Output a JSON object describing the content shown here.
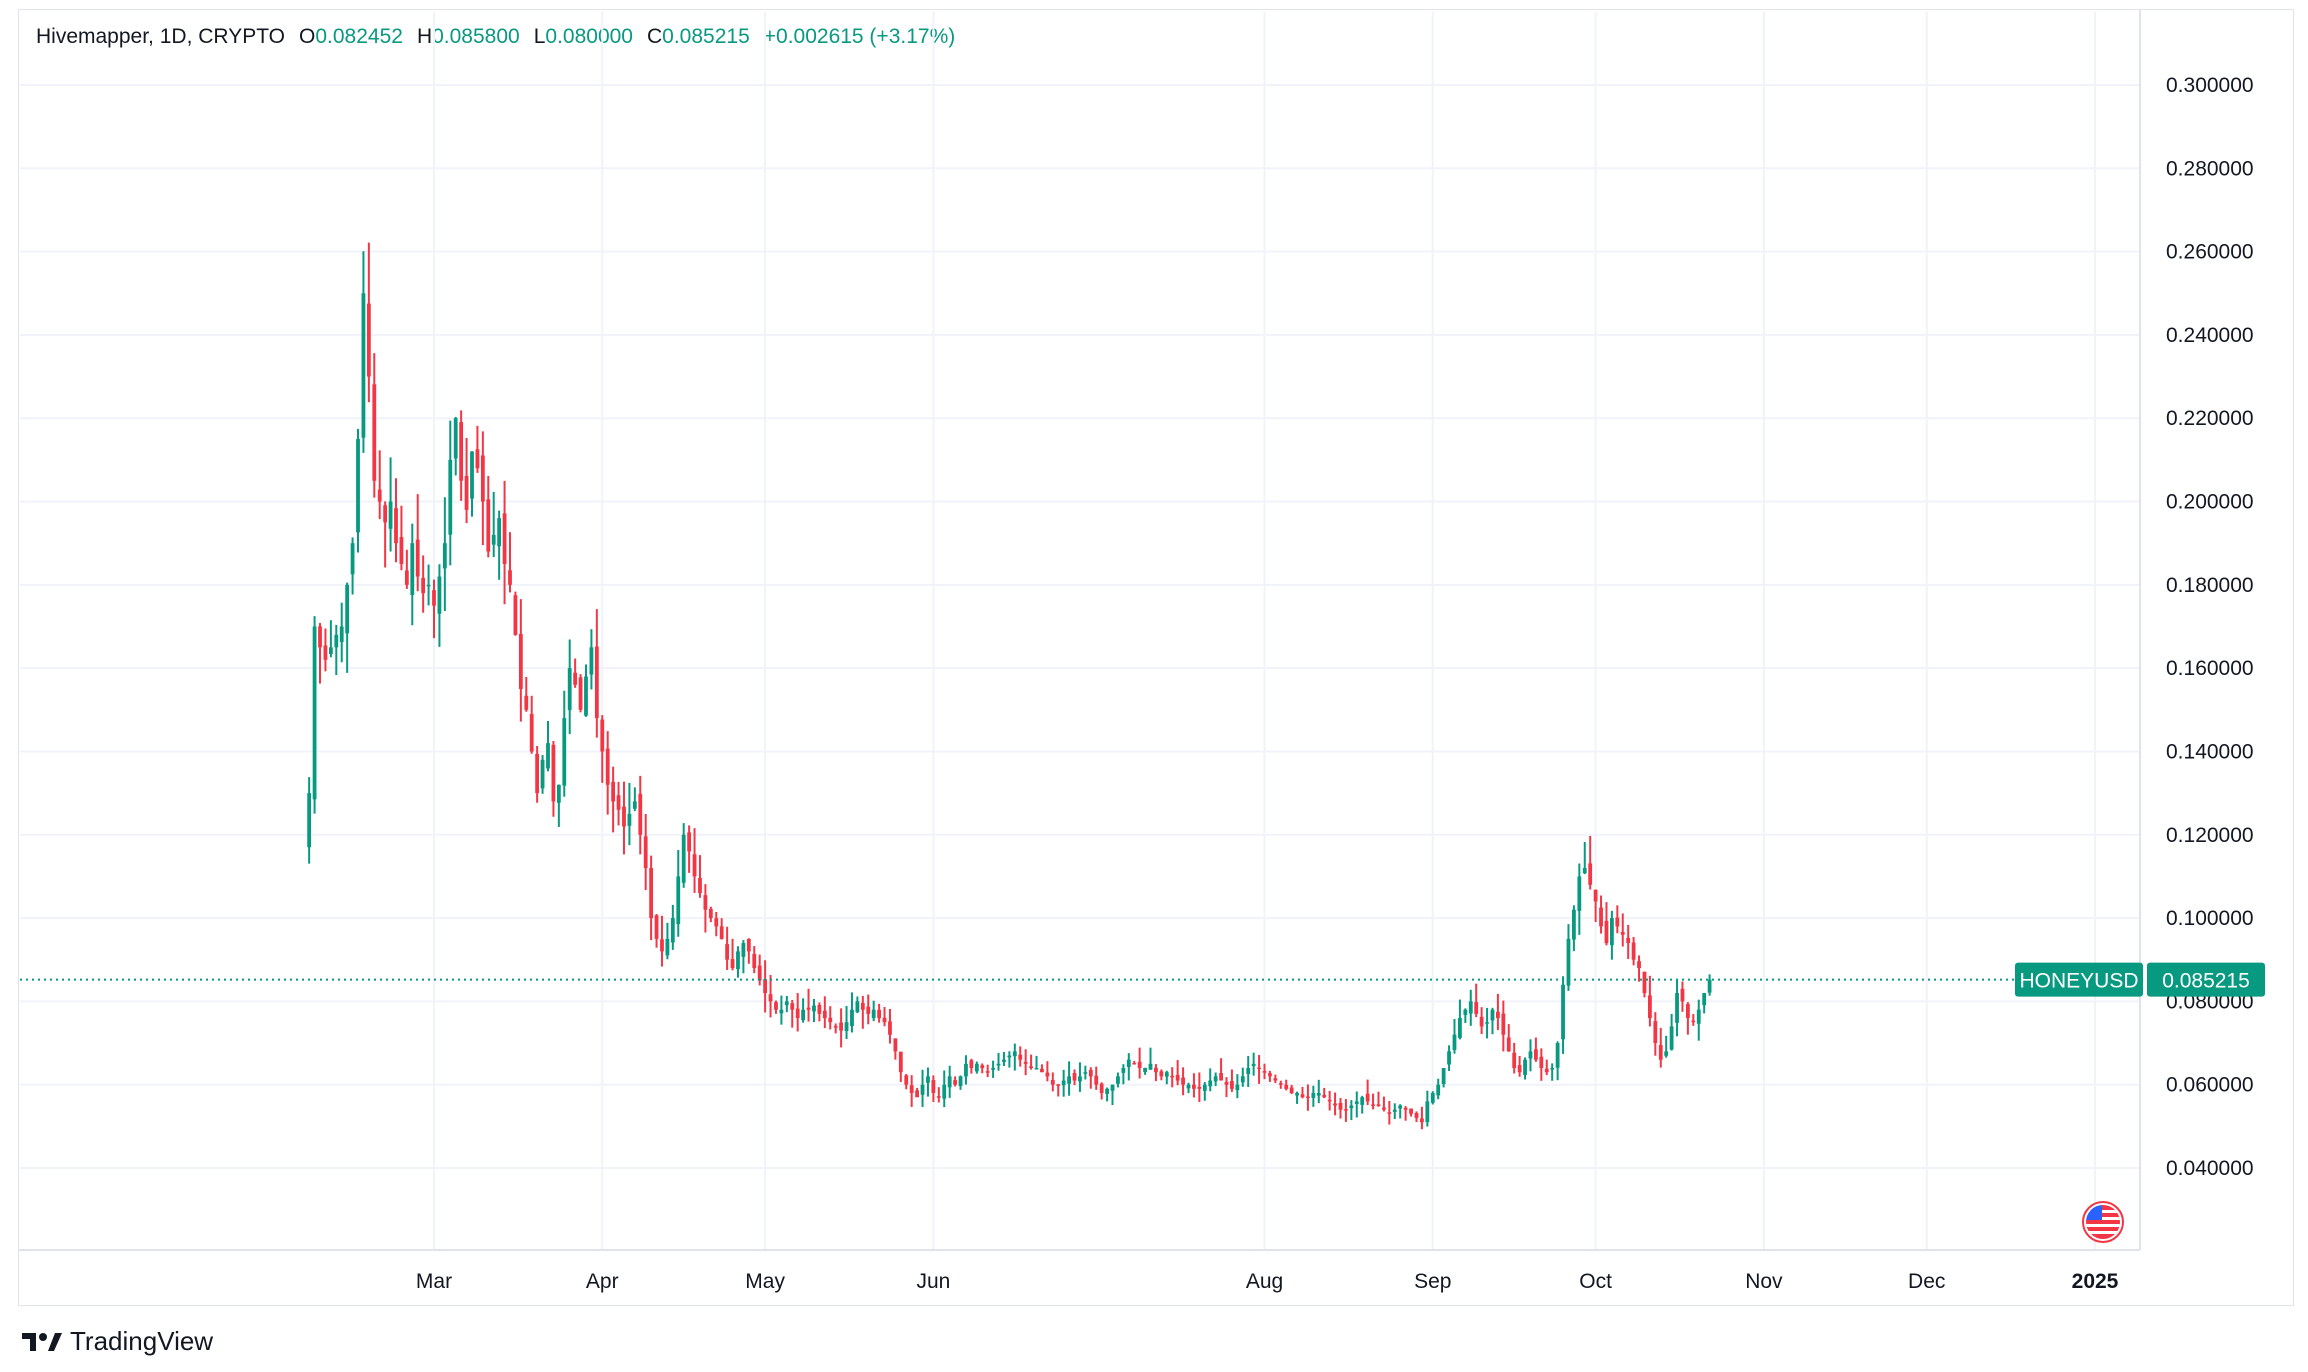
{
  "header": {
    "symbol_title": "Hivemapper, 1D, CRYPTO",
    "open_label": "O",
    "open_value": "0.082452",
    "high_label": "H",
    "high_value": "0.085800",
    "low_label": "L",
    "low_value": "0.080000",
    "close_label": "C",
    "close_value": "0.085215",
    "change_text": "+0.002615 (+3.17%)"
  },
  "colors": {
    "up": "#089981",
    "down": "#f23645",
    "grid": "#f0f3fa",
    "price_line": "#089981"
  },
  "footer": {
    "brand": "TradingView",
    "logo_icon": "tradingview-logo-icon"
  },
  "flag_icon": "us-flag-icon",
  "chart_data": {
    "type": "candlestick",
    "title": "Hivemapper, 1D, CRYPTO",
    "ylim": [
      0.022,
      0.3
    ],
    "y_ticks": [
      "0.300000",
      "0.280000",
      "0.260000",
      "0.240000",
      "0.220000",
      "0.200000",
      "0.180000",
      "0.160000",
      "0.140000",
      "0.120000",
      "0.100000",
      "0.080000",
      "0.060000",
      "0.040000"
    ],
    "x_ticks": [
      {
        "date": "2024-03-01",
        "label": "Mar"
      },
      {
        "date": "2024-04-01",
        "label": "Apr"
      },
      {
        "date": "2024-05-01",
        "label": "May"
      },
      {
        "date": "2024-06-01",
        "label": "Jun"
      },
      {
        "date": "2024-08-01",
        "label": "Aug"
      },
      {
        "date": "2024-09-01",
        "label": "Sep"
      },
      {
        "date": "2024-10-01",
        "label": "Oct"
      },
      {
        "date": "2024-11-01",
        "label": "Nov"
      },
      {
        "date": "2024-12-01",
        "label": "Dec"
      },
      {
        "date": "2025-01-01",
        "label": "2025",
        "bold": true
      }
    ],
    "grid": true,
    "last_price_label": {
      "symbol": "HONEYUSD",
      "value": "0.085215",
      "price": 0.085215
    },
    "close_series": {
      "start_date": "2024-02-07",
      "values": [
        0.13,
        0.17,
        0.165,
        0.162,
        0.165,
        0.168,
        0.17,
        0.18,
        0.19,
        0.215,
        0.25,
        0.23,
        0.205,
        0.2,
        0.195,
        0.2,
        0.19,
        0.185,
        0.18,
        0.19,
        0.182,
        0.178,
        0.18,
        0.175,
        0.182,
        0.19,
        0.21,
        0.22,
        0.205,
        0.198,
        0.212,
        0.208,
        0.2,
        0.188,
        0.192,
        0.196,
        0.185,
        0.18,
        0.168,
        0.155,
        0.15,
        0.14,
        0.13,
        0.138,
        0.142,
        0.128,
        0.132,
        0.148,
        0.16,
        0.156,
        0.15,
        0.158,
        0.165,
        0.148,
        0.14,
        0.132,
        0.128,
        0.126,
        0.122,
        0.125,
        0.128,
        0.12,
        0.112,
        0.1,
        0.095,
        0.092,
        0.095,
        0.1,
        0.11,
        0.12,
        0.116,
        0.11,
        0.106,
        0.102,
        0.1,
        0.098,
        0.095,
        0.09,
        0.088,
        0.092,
        0.094,
        0.092,
        0.088,
        0.085,
        0.082,
        0.08,
        0.078,
        0.078,
        0.08,
        0.078,
        0.076,
        0.078,
        0.078,
        0.079,
        0.077,
        0.076,
        0.075,
        0.074,
        0.073,
        0.075,
        0.078,
        0.08,
        0.078,
        0.077,
        0.078,
        0.076,
        0.075,
        0.072,
        0.068,
        0.063,
        0.06,
        0.058,
        0.057,
        0.06,
        0.062,
        0.058,
        0.057,
        0.06,
        0.062,
        0.06,
        0.062,
        0.065,
        0.064,
        0.065,
        0.064,
        0.063,
        0.064,
        0.065,
        0.066,
        0.067,
        0.068,
        0.066,
        0.065,
        0.064,
        0.064,
        0.063,
        0.062,
        0.06,
        0.06,
        0.061,
        0.062,
        0.061,
        0.062,
        0.063,
        0.062,
        0.06,
        0.058,
        0.059,
        0.06,
        0.062,
        0.064,
        0.066,
        0.065,
        0.064,
        0.064,
        0.065,
        0.063,
        0.062,
        0.063,
        0.062,
        0.061,
        0.06,
        0.06,
        0.059,
        0.059,
        0.06,
        0.061,
        0.062,
        0.061,
        0.06,
        0.059,
        0.06,
        0.062,
        0.064,
        0.065,
        0.064,
        0.063,
        0.062,
        0.061,
        0.06,
        0.059,
        0.058,
        0.058,
        0.057,
        0.057,
        0.058,
        0.058,
        0.057,
        0.056,
        0.055,
        0.054,
        0.054,
        0.055,
        0.056,
        0.057,
        0.056,
        0.055,
        0.055,
        0.054,
        0.053,
        0.054,
        0.055,
        0.054,
        0.053,
        0.052,
        0.051,
        0.056,
        0.058,
        0.06,
        0.064,
        0.068,
        0.072,
        0.076,
        0.078,
        0.08,
        0.077,
        0.074,
        0.075,
        0.078,
        0.076,
        0.072,
        0.068,
        0.064,
        0.063,
        0.066,
        0.068,
        0.066,
        0.064,
        0.063,
        0.064,
        0.07,
        0.084,
        0.095,
        0.102,
        0.11,
        0.112,
        0.108,
        0.104,
        0.098,
        0.094,
        0.1,
        0.098,
        0.096,
        0.094,
        0.09,
        0.088,
        0.082,
        0.076,
        0.07,
        0.066,
        0.068,
        0.074,
        0.082,
        0.08,
        0.076,
        0.075,
        0.078,
        0.082,
        0.085215
      ]
    }
  }
}
